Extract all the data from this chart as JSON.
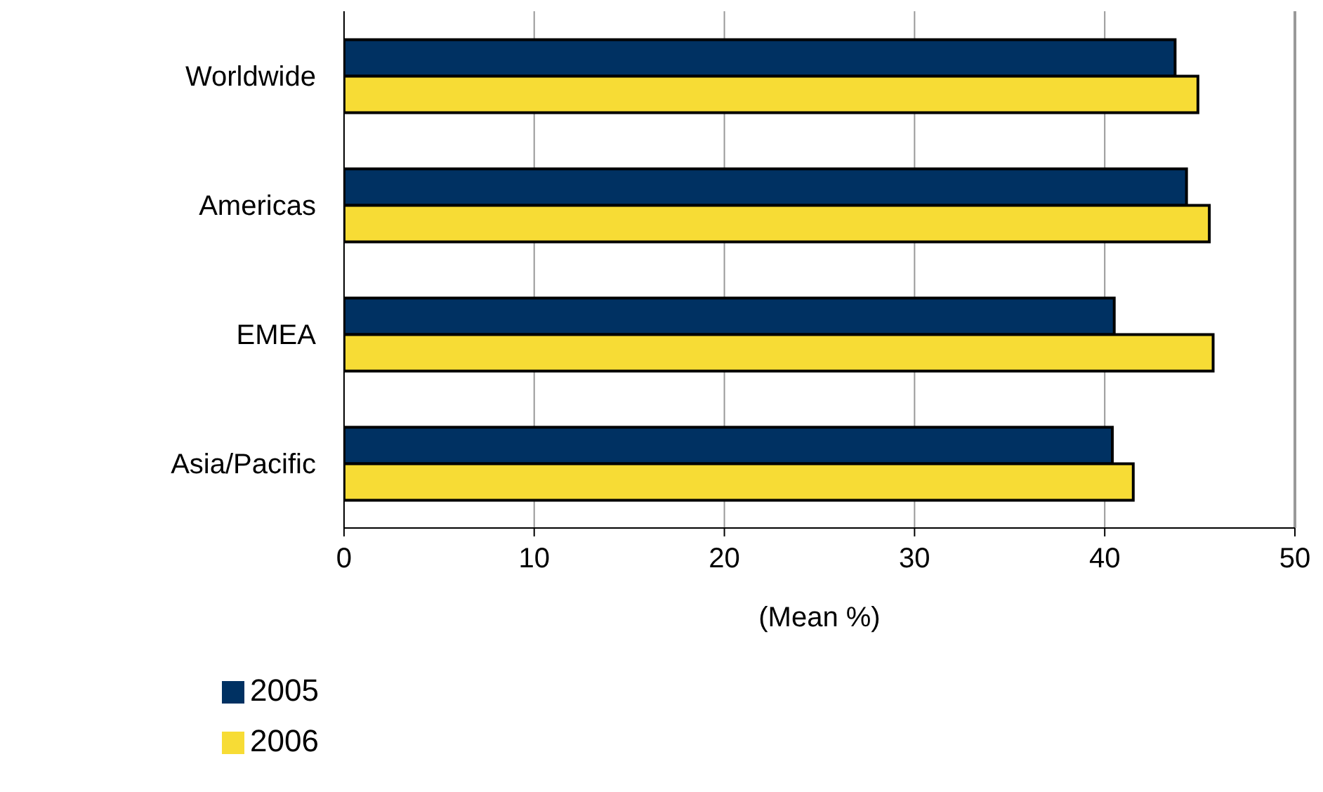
{
  "chart_data": {
    "type": "bar",
    "orientation": "horizontal",
    "xlabel": "(Mean %)",
    "categories": [
      "Worldwide",
      "Americas",
      "EMEA",
      "Asia/Pacific"
    ],
    "series": [
      {
        "name": "2005",
        "color": "#003162",
        "values": [
          43.7,
          44.3,
          40.5,
          40.4
        ]
      },
      {
        "name": "2006",
        "color": "#f7dc35",
        "values": [
          44.9,
          45.5,
          45.7,
          41.5
        ]
      }
    ],
    "xlim": [
      0,
      50
    ],
    "xticks": [
      0,
      10,
      20,
      30,
      40,
      50
    ],
    "grid": "x",
    "legend": "bottom left"
  }
}
